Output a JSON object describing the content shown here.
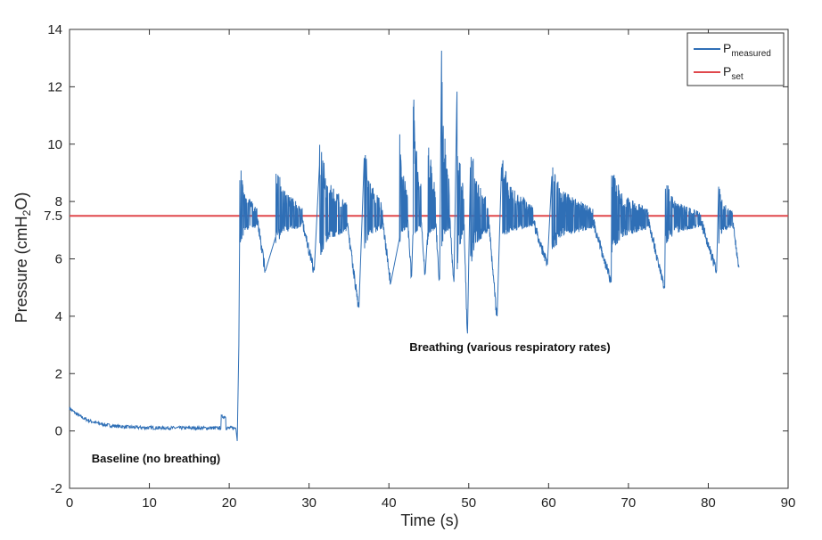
{
  "chart_data": {
    "type": "line",
    "xlabel": "Time (s)",
    "ylabel": "Pressure (cmH2O)",
    "ylabel_parts": {
      "main": "Pressure (cmH",
      "sub": "2",
      "end": "O)"
    },
    "xlim": [
      0,
      90
    ],
    "ylim": [
      -2,
      14
    ],
    "x_ticks": [
      0,
      10,
      20,
      30,
      40,
      50,
      60,
      70,
      80,
      90
    ],
    "y_ticks": [
      -2,
      0,
      2,
      4,
      6,
      7.5,
      8,
      10,
      12,
      14
    ],
    "legend_position": "top-right",
    "annotations": [
      {
        "text": "Baseline (no breathing)",
        "x": 10,
        "y": -1.0
      },
      {
        "text": "Breathing (various respiratory rates)",
        "x": 58,
        "y": 2.9
      }
    ],
    "series": [
      {
        "name": "Pmeasured",
        "legend": {
          "main": "P",
          "sub": "measured"
        },
        "color": "#2f6fb6",
        "baseline_phase": {
          "x_range": [
            0,
            21
          ],
          "start_value": 0.8,
          "end_value": 0.1,
          "final_dip": -0.35
        },
        "breath_bursts": [
          {
            "start": 21.3,
            "end": 24.5,
            "peak": 9.4,
            "low": 5.6
          },
          {
            "start": 25.8,
            "end": 30.6,
            "peak": 9.6,
            "low": 5.6
          },
          {
            "start": 31.3,
            "end": 36.2,
            "peak": 10.3,
            "low": 4.3
          },
          {
            "start": 36.9,
            "end": 40.2,
            "peak": 10.2,
            "low": 5.2
          },
          {
            "start": 41.3,
            "end": 42.8,
            "peak": 11.5,
            "low": 5.4
          },
          {
            "start": 43.0,
            "end": 44.5,
            "peak": 13.1,
            "low": 5.5
          },
          {
            "start": 44.8,
            "end": 46.3,
            "peak": 12.4,
            "low": 5.3
          },
          {
            "start": 46.6,
            "end": 48.1,
            "peak": 13.9,
            "low": 5.2
          },
          {
            "start": 48.5,
            "end": 49.8,
            "peak": 12.2,
            "low": 3.4
          },
          {
            "start": 50.2,
            "end": 53.5,
            "peak": 10.4,
            "low": 4.0
          },
          {
            "start": 54.1,
            "end": 59.8,
            "peak": 9.8,
            "low": 5.8
          },
          {
            "start": 60.4,
            "end": 67.8,
            "peak": 9.5,
            "low": 5.2
          },
          {
            "start": 67.9,
            "end": 74.5,
            "peak": 9.3,
            "low": 5.0
          },
          {
            "start": 74.6,
            "end": 81.0,
            "peak": 8.8,
            "low": 5.6
          },
          {
            "start": 81.3,
            "end": 83.8,
            "peak": 8.8,
            "low": 5.7
          }
        ]
      },
      {
        "name": "Pset",
        "legend": {
          "main": "P",
          "sub": "set"
        },
        "color": "#e0484c",
        "value": 7.5,
        "x_range": [
          0,
          90
        ]
      }
    ]
  }
}
